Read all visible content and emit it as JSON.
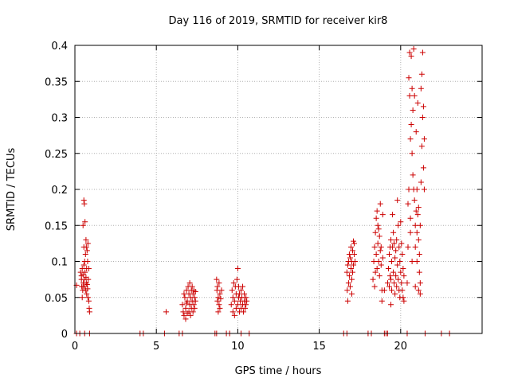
{
  "chart_data": {
    "type": "scatter",
    "title": "Day 116 of 2019, SRMTID for receiver kir8",
    "xlabel": "GPS time / hours",
    "ylabel": "SRMTID / TECUs",
    "xlim": [
      0,
      25
    ],
    "ylim": [
      0,
      0.4
    ],
    "xticks": [
      0,
      5,
      10,
      15,
      20
    ],
    "yticks": [
      0,
      0.05,
      0.1,
      0.15,
      0.2,
      0.25,
      0.3,
      0.35,
      0.4
    ],
    "xtick_labels": [
      "0",
      "5",
      "10",
      "15",
      "20"
    ],
    "ytick_labels": [
      "0",
      "0.05",
      "0.1",
      "0.15",
      "0.2",
      "0.25",
      "0.3",
      "0.35",
      "0.4"
    ],
    "grid": true,
    "marker": "+",
    "color": "#cc0000",
    "series": [
      {
        "points": [
          [
            0.1,
            0.067
          ],
          [
            0.1,
            0
          ],
          [
            0.3,
            0
          ],
          [
            0.35,
            0.085
          ],
          [
            0.4,
            0.08
          ],
          [
            0.4,
            0.075
          ],
          [
            0.42,
            0.065
          ],
          [
            0.45,
            0.09
          ],
          [
            0.45,
            0.05
          ],
          [
            0.48,
            0.06
          ],
          [
            0.5,
            0.15
          ],
          [
            0.5,
            0.082
          ],
          [
            0.52,
            0.07
          ],
          [
            0.55,
            0.185
          ],
          [
            0.55,
            0.095
          ],
          [
            0.58,
            0.18
          ],
          [
            0.58,
            0.075
          ],
          [
            0.6,
            0.1
          ],
          [
            0.6,
            0.065
          ],
          [
            0.62,
            0.155
          ],
          [
            0.62,
            0.085
          ],
          [
            0.65,
            0.11
          ],
          [
            0.65,
            0.06
          ],
          [
            0.68,
            0.13
          ],
          [
            0.68,
            0.078
          ],
          [
            0.7,
            0.12
          ],
          [
            0.7,
            0.07
          ],
          [
            0.72,
            0.09
          ],
          [
            0.72,
            0.055
          ],
          [
            0.75,
            0.115
          ],
          [
            0.75,
            0.068
          ],
          [
            0.78,
            0.1
          ],
          [
            0.78,
            0.062
          ],
          [
            0.8,
            0.125
          ],
          [
            0.8,
            0.05
          ],
          [
            0.82,
            0.075
          ],
          [
            0.85,
            0.045
          ],
          [
            0.85,
            0.09
          ],
          [
            0.88,
            0.035
          ],
          [
            0.9,
            0.03
          ],
          [
            0.9,
            0
          ],
          [
            0.6,
            0
          ],
          [
            0.5,
            0.065
          ],
          [
            0.55,
            0.12
          ],
          [
            4.0,
            0
          ],
          [
            4.2,
            0
          ],
          [
            5.5,
            0
          ],
          [
            5.6,
            0.03
          ],
          [
            6.4,
            0
          ],
          [
            6.6,
            0
          ],
          [
            6.6,
            0.04
          ],
          [
            6.65,
            0.03
          ],
          [
            6.7,
            0.025
          ],
          [
            6.75,
            0.05
          ],
          [
            6.8,
            0.02
          ],
          [
            6.8,
            0.035
          ],
          [
            6.85,
            0.06
          ],
          [
            6.9,
            0.028
          ],
          [
            6.9,
            0.045
          ],
          [
            6.95,
            0.065
          ],
          [
            7.0,
            0.03
          ],
          [
            7.0,
            0.055
          ],
          [
            7.05,
            0.04
          ],
          [
            7.05,
            0.07
          ],
          [
            7.1,
            0.025
          ],
          [
            7.1,
            0.05
          ],
          [
            7.15,
            0.06
          ],
          [
            7.15,
            0.035
          ],
          [
            7.2,
            0.045
          ],
          [
            7.2,
            0.065
          ],
          [
            7.25,
            0.03
          ],
          [
            7.25,
            0.055
          ],
          [
            7.3,
            0.04
          ],
          [
            7.3,
            0.06
          ],
          [
            7.35,
            0.05
          ],
          [
            7.35,
            0.035
          ],
          [
            7.4,
            0.058
          ],
          [
            7.4,
            0.045
          ],
          [
            6.7,
            0.055
          ],
          [
            6.85,
            0.042
          ],
          [
            8.6,
            0
          ],
          [
            8.7,
            0
          ],
          [
            8.7,
            0.075
          ],
          [
            8.72,
            0.06
          ],
          [
            8.75,
            0.045
          ],
          [
            8.75,
            0.065
          ],
          [
            8.8,
            0.03
          ],
          [
            8.8,
            0.05
          ],
          [
            8.85,
            0.04
          ],
          [
            8.85,
            0.07
          ],
          [
            8.9,
            0.055
          ],
          [
            8.9,
            0.035
          ],
          [
            8.95,
            0.048
          ],
          [
            9.0,
            0.06
          ],
          [
            9.3,
            0
          ],
          [
            9.5,
            0
          ],
          [
            9.6,
            0.04
          ],
          [
            9.65,
            0.06
          ],
          [
            9.7,
            0.05
          ],
          [
            9.7,
            0.03
          ],
          [
            9.75,
            0.07
          ],
          [
            9.8,
            0.045
          ],
          [
            9.8,
            0.025
          ],
          [
            9.85,
            0.065
          ],
          [
            9.9,
            0.055
          ],
          [
            9.9,
            0.035
          ],
          [
            9.95,
            0.075
          ],
          [
            10.0,
            0.04
          ],
          [
            10.0,
            0.09
          ],
          [
            10.05,
            0.05
          ],
          [
            10.05,
            0.065
          ],
          [
            10.1,
            0.03
          ],
          [
            10.1,
            0.055
          ],
          [
            10.15,
            0.045
          ],
          [
            10.2,
            0.06
          ],
          [
            10.2,
            0.035
          ],
          [
            10.25,
            0.05
          ],
          [
            10.3,
            0.04
          ],
          [
            10.3,
            0.065
          ],
          [
            10.35,
            0.03
          ],
          [
            10.4,
            0.055
          ],
          [
            10.4,
            0.045
          ],
          [
            10.45,
            0.035
          ],
          [
            10.5,
            0.05
          ],
          [
            10.5,
            0.04
          ],
          [
            10.55,
            0.045
          ],
          [
            10.2,
            0
          ],
          [
            10.7,
            0
          ],
          [
            16.5,
            0
          ],
          [
            16.7,
            0
          ],
          [
            16.7,
            0.085
          ],
          [
            16.72,
            0.06
          ],
          [
            16.75,
            0.095
          ],
          [
            16.75,
            0.045
          ],
          [
            16.8,
            0.1
          ],
          [
            16.8,
            0.07
          ],
          [
            16.85,
            0.11
          ],
          [
            16.85,
            0.08
          ],
          [
            16.9,
            0.105
          ],
          [
            16.9,
            0.065
          ],
          [
            16.95,
            0.12
          ],
          [
            16.95,
            0.09
          ],
          [
            17.0,
            0.1
          ],
          [
            17.0,
            0.075
          ],
          [
            17.05,
            0.115
          ],
          [
            17.05,
            0.085
          ],
          [
            17.1,
            0.128
          ],
          [
            17.1,
            0.095
          ],
          [
            17.15,
            0.11
          ],
          [
            17.15,
            0.125
          ],
          [
            17.2,
            0.1
          ],
          [
            17.0,
            0.055
          ],
          [
            18.0,
            0
          ],
          [
            18.2,
            0
          ],
          [
            18.3,
            0.075
          ],
          [
            18.35,
            0.1
          ],
          [
            18.4,
            0.12
          ],
          [
            18.4,
            0.065
          ],
          [
            18.45,
            0.14
          ],
          [
            18.45,
            0.085
          ],
          [
            18.5,
            0.16
          ],
          [
            18.5,
            0.11
          ],
          [
            18.55,
            0.17
          ],
          [
            18.55,
            0.09
          ],
          [
            18.6,
            0.15
          ],
          [
            18.6,
            0.125
          ],
          [
            18.65,
            0.145
          ],
          [
            18.65,
            0.1
          ],
          [
            18.7,
            0.135
          ],
          [
            18.7,
            0.08
          ],
          [
            18.75,
            0.18
          ],
          [
            18.75,
            0.115
          ],
          [
            18.8,
            0.12
          ],
          [
            18.8,
            0.095
          ],
          [
            18.85,
            0.06
          ],
          [
            18.85,
            0.045
          ],
          [
            18.9,
            0.165
          ],
          [
            18.9,
            0.105
          ],
          [
            19.0,
            0
          ],
          [
            19.1,
            0
          ],
          [
            19.2,
            0
          ],
          [
            19.2,
            0.07
          ],
          [
            19.25,
            0.09
          ],
          [
            19.3,
            0.11
          ],
          [
            19.3,
            0.065
          ],
          [
            19.35,
            0.12
          ],
          [
            19.35,
            0.08
          ],
          [
            19.4,
            0.13
          ],
          [
            19.4,
            0.075
          ],
          [
            19.45,
            0.1
          ],
          [
            19.45,
            0.06
          ],
          [
            19.5,
            0.165
          ],
          [
            19.5,
            0.12
          ],
          [
            19.55,
            0.14
          ],
          [
            19.55,
            0.085
          ],
          [
            19.6,
            0.125
          ],
          [
            19.6,
            0.07
          ],
          [
            19.65,
            0.105
          ],
          [
            19.65,
            0.055
          ],
          [
            19.7,
            0.115
          ],
          [
            19.7,
            0.08
          ],
          [
            19.75,
            0.13
          ],
          [
            19.75,
            0.065
          ],
          [
            19.8,
            0.185
          ],
          [
            19.8,
            0.095
          ],
          [
            19.85,
            0.15
          ],
          [
            19.85,
            0.075
          ],
          [
            19.9,
            0.12
          ],
          [
            19.9,
            0.06
          ],
          [
            19.95,
            0.1
          ],
          [
            19.95,
            0.05
          ],
          [
            20.0,
            0.155
          ],
          [
            20.0,
            0.085
          ],
          [
            20.05,
            0.125
          ],
          [
            20.05,
            0.07
          ],
          [
            20.1,
            0.11
          ],
          [
            20.1,
            0.06
          ],
          [
            20.15,
            0.09
          ],
          [
            20.15,
            0.05
          ],
          [
            20.2,
            0.08
          ],
          [
            20.2,
            0.045
          ],
          [
            19.4,
            0.04
          ],
          [
            19.0,
            0.06
          ],
          [
            20.4,
            0
          ],
          [
            20.4,
            0.07
          ],
          [
            20.45,
            0.18
          ],
          [
            20.45,
            0.12
          ],
          [
            20.5,
            0.355
          ],
          [
            20.5,
            0.2
          ],
          [
            20.55,
            0.39
          ],
          [
            20.55,
            0.33
          ],
          [
            20.6,
            0.27
          ],
          [
            20.6,
            0.16
          ],
          [
            20.65,
            0.385
          ],
          [
            20.65,
            0.29
          ],
          [
            20.7,
            0.34
          ],
          [
            20.7,
            0.25
          ],
          [
            20.75,
            0.31
          ],
          [
            20.75,
            0.22
          ],
          [
            20.8,
            0.395
          ],
          [
            20.8,
            0.2
          ],
          [
            20.85,
            0.33
          ],
          [
            20.85,
            0.185
          ],
          [
            20.9,
            0.15
          ],
          [
            20.9,
            0.12
          ],
          [
            20.95,
            0.28
          ],
          [
            20.95,
            0.17
          ],
          [
            21.0,
            0.2
          ],
          [
            21.0,
            0.14
          ],
          [
            21.0,
            0.1
          ],
          [
            21.05,
            0.32
          ],
          [
            21.05,
            0.165
          ],
          [
            21.1,
            0.175
          ],
          [
            21.1,
            0.13
          ],
          [
            21.15,
            0.11
          ],
          [
            21.15,
            0.085
          ],
          [
            21.2,
            0.07
          ],
          [
            21.2,
            0.055
          ],
          [
            21.25,
            0.34
          ],
          [
            21.25,
            0.21
          ],
          [
            21.3,
            0.36
          ],
          [
            21.3,
            0.26
          ],
          [
            21.35,
            0.39
          ],
          [
            21.35,
            0.3
          ],
          [
            21.4,
            0.315
          ],
          [
            21.4,
            0.23
          ],
          [
            21.45,
            0.27
          ],
          [
            21.45,
            0.2
          ],
          [
            20.7,
            0.1
          ],
          [
            20.9,
            0.065
          ],
          [
            21.1,
            0.06
          ],
          [
            21.2,
            0.15
          ],
          [
            20.6,
            0.14
          ],
          [
            21.5,
            0
          ],
          [
            22.5,
            0
          ],
          [
            23.0,
            0
          ]
        ]
      }
    ]
  }
}
